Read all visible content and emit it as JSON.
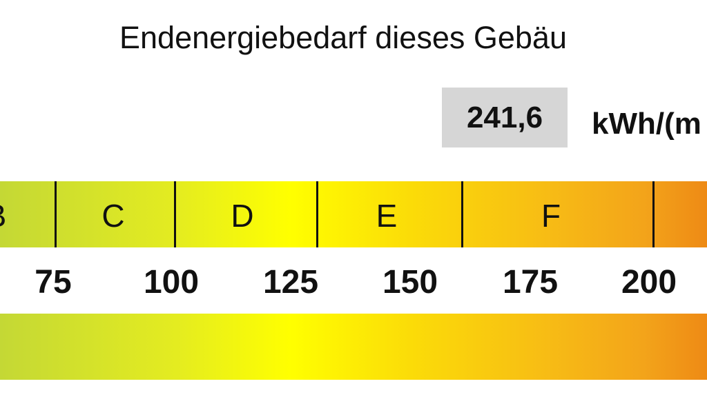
{
  "title": "Endenergiebedarf dieses Gebäu",
  "value": "241,6",
  "unit": "kWh/(m",
  "classes": [
    "B",
    "C",
    "D",
    "E",
    "F"
  ],
  "ticks": [
    "75",
    "100",
    "125",
    "150",
    "175",
    "200"
  ],
  "colors": {
    "green": "#c4d835",
    "yellow": "#ffff00",
    "orange": "#ee8a15",
    "value_box": "#d6d6d6"
  }
}
